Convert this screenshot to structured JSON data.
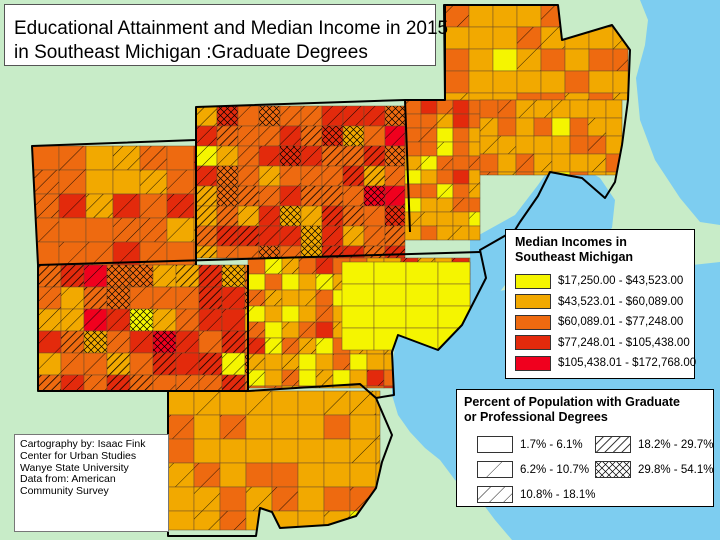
{
  "title": {
    "line1": "Educational Attainment and Median Income in 2015",
    "line2": "in Southeast Michigan :Graduate Degrees"
  },
  "income_legend": {
    "title_line1": "Median Incomes in",
    "title_line2": "Southeast Michigan",
    "items": [
      {
        "label": "$17,250.00 - $43,523.00",
        "color": "#f5f500"
      },
      {
        "label": "$43,523.01 - $60,089.00",
        "color": "#f2a900"
      },
      {
        "label": "$60,089.01 - $77,248.00",
        "color": "#ee6a10"
      },
      {
        "label": "$77,248.01 - $105,438.00",
        "color": "#e32a0c"
      },
      {
        "label": "$105,438.01 - $172,768.00",
        "color": "#f0001e"
      }
    ]
  },
  "percent_legend": {
    "title_line1": "Percent of Population with Graduate",
    "title_line2": "or Professional Degrees",
    "items": [
      {
        "label": "1.7% - 6.1%",
        "pattern": "none"
      },
      {
        "label": "18.2% - 29.7%",
        "pattern": "dense-diagonal"
      },
      {
        "label": "6.2% - 10.7%",
        "pattern": "sparse-diagonal"
      },
      {
        "label": "29.8% - 54.1%",
        "pattern": "crosshatch"
      },
      {
        "label": "10.8% - 18.1%",
        "pattern": "medium-diagonal"
      }
    ]
  },
  "credits": {
    "line1": "Cartography by: Isaac Fink",
    "line2": "Center for Urban Studies",
    "line3": "Wanye State University",
    "line4": "Data from: American",
    "line5": "Community Survey"
  },
  "colors": {
    "land_background": "#c8ecc8",
    "water": "#7dcdf0"
  }
}
